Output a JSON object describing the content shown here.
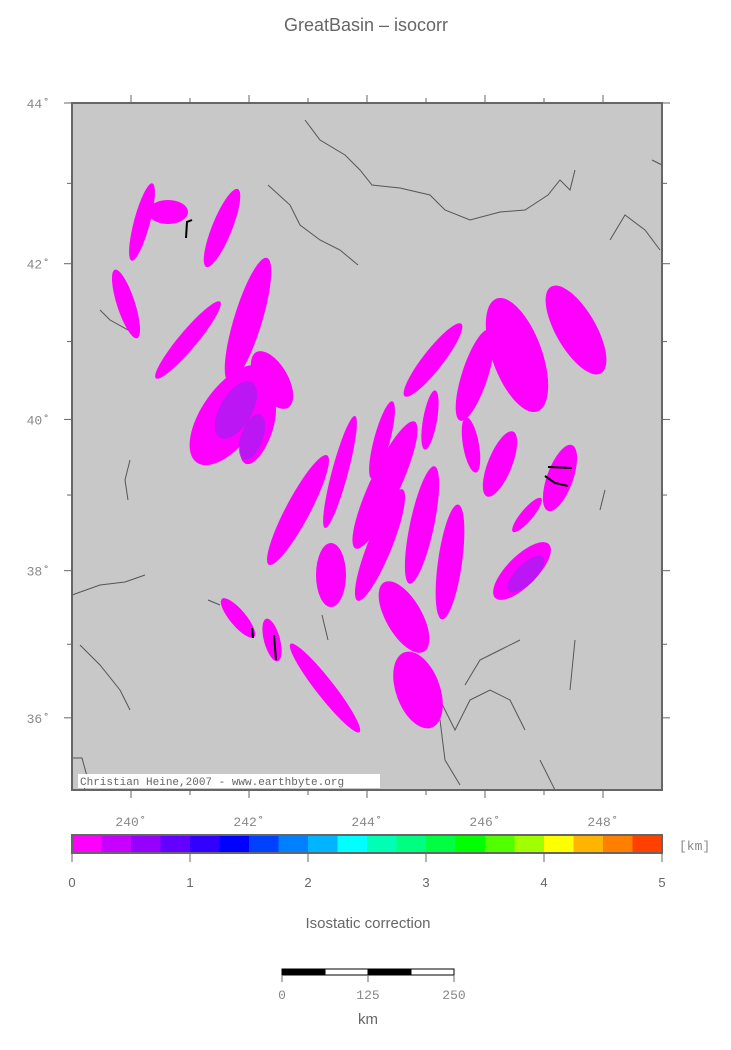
{
  "title": "GreatBasin – isocorr",
  "map": {
    "credit": "Christian Heine,2007 - www.earthbyte.org",
    "xlim": [
      239,
      249
    ],
    "ylim": [
      35,
      44
    ],
    "xticks": [
      {
        "value": 240,
        "label": "240˚"
      },
      {
        "value": 242,
        "label": "242˚"
      },
      {
        "value": 244,
        "label": "244˚"
      },
      {
        "value": 246,
        "label": "246˚"
      },
      {
        "value": 248,
        "label": "248˚"
      }
    ],
    "yticks": [
      {
        "value": 36,
        "label": "36˚"
      },
      {
        "value": 38,
        "label": "38˚"
      },
      {
        "value": 40,
        "label": "40˚"
      },
      {
        "value": 42,
        "label": "42˚"
      },
      {
        "value": 44,
        "label": "44˚"
      }
    ]
  },
  "colorbar": {
    "label": "Isostatic correction",
    "unit": "[km]",
    "range": [
      0,
      5
    ],
    "ticks": [
      0,
      1,
      2,
      3,
      4,
      5
    ],
    "colors": [
      "#ff00ff",
      "#c800ff",
      "#9600ff",
      "#6400ff",
      "#3200ff",
      "#0000ff",
      "#0040ff",
      "#0080ff",
      "#00b4ff",
      "#00ffff",
      "#00ffb4",
      "#00ff80",
      "#00ff40",
      "#00ff00",
      "#50ff00",
      "#a0ff00",
      "#ffff00",
      "#ffb400",
      "#ff8000",
      "#ff4000"
    ]
  },
  "scalebar": {
    "unit": "km",
    "range": [
      0,
      250
    ],
    "ticks": [
      0,
      125,
      250
    ]
  }
}
